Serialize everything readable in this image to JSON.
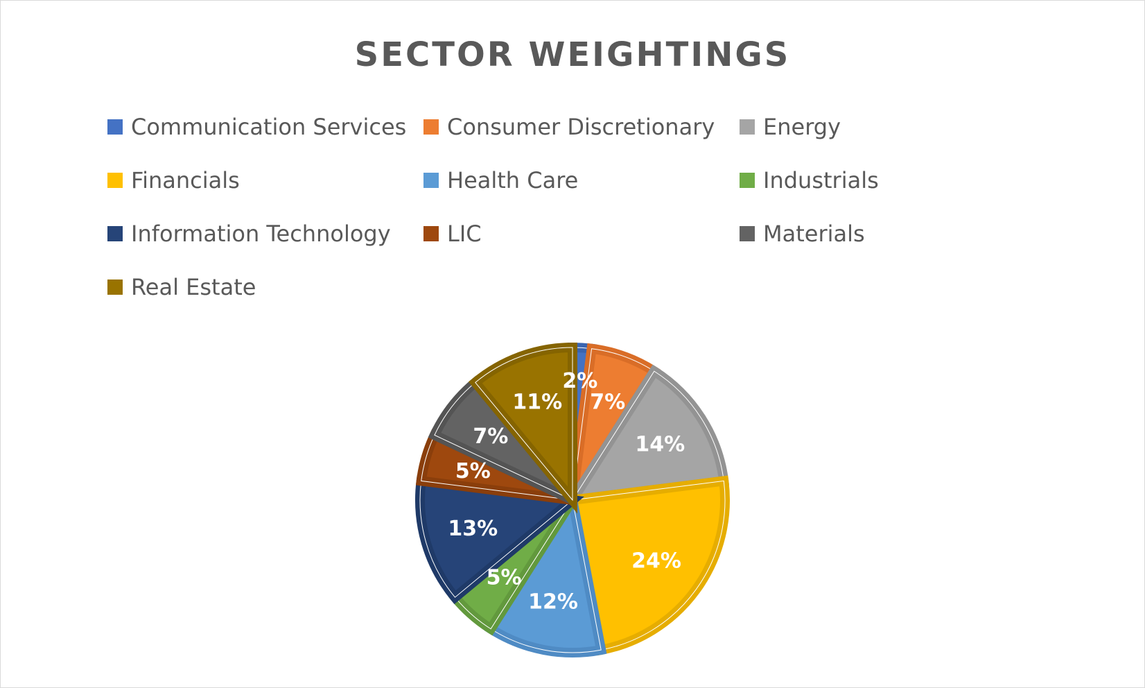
{
  "chart_data": {
    "type": "pie",
    "title": "SECTOR WEIGHTINGS",
    "legend_position": "top",
    "categories": [
      "Communication Services",
      "Consumer Discretionary",
      "Energy",
      "Financials",
      "Health Care",
      "Industrials",
      "Information Technology",
      "LIC",
      "Materials",
      "Real Estate"
    ],
    "values": [
      2,
      7,
      14,
      24,
      12,
      5,
      13,
      5,
      7,
      11
    ],
    "labels": [
      "2%",
      "7%",
      "14%",
      "24%",
      "12%",
      "5%",
      "13%",
      "5%",
      "7%",
      "11%"
    ],
    "colors": [
      "#4472C4",
      "#ED7D31",
      "#A5A5A5",
      "#FFC000",
      "#5B9BD5",
      "#70AD47",
      "#264478",
      "#9E480E",
      "#636363",
      "#997300"
    ],
    "edge_colors": [
      "#3a64b0",
      "#d96d27",
      "#939393",
      "#e6ad00",
      "#4f8bc4",
      "#62993d",
      "#1f3a68",
      "#8a3e0b",
      "#545454",
      "#856400"
    ]
  }
}
